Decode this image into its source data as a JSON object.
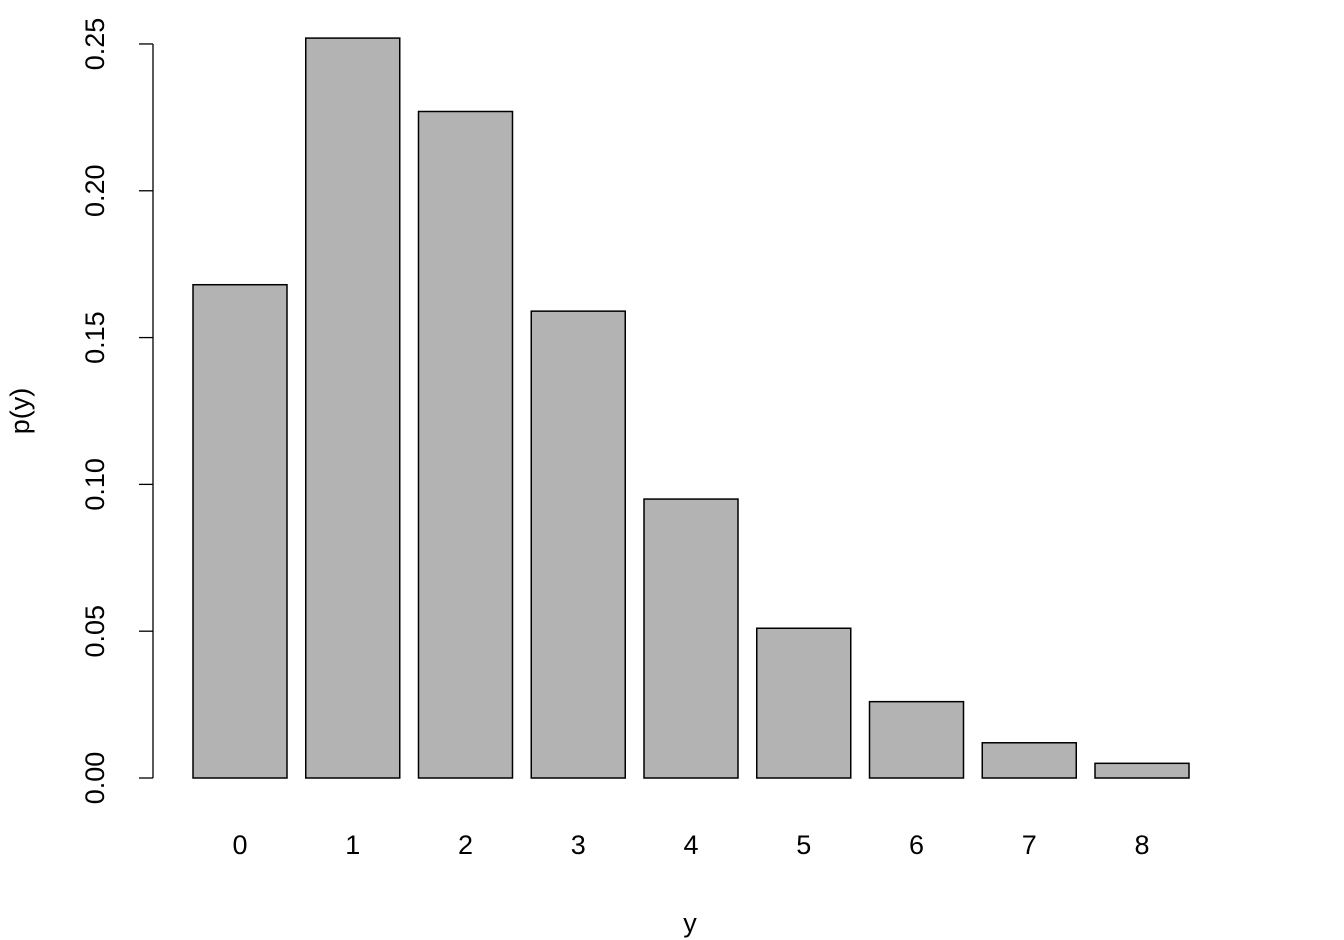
{
  "chart_data": {
    "type": "bar",
    "x_label": "y",
    "y_label": "p(y)",
    "categories": [
      "0",
      "1",
      "2",
      "3",
      "4",
      "5",
      "6",
      "7",
      "8"
    ],
    "values": [
      0.168,
      0.252,
      0.227,
      0.159,
      0.095,
      0.051,
      0.026,
      0.012,
      0.005
    ],
    "color": "#b3b3b3",
    "ylim": [
      0,
      0.26
    ],
    "yticks": [
      {
        "value": 0,
        "label": "0.00"
      },
      0.05,
      {
        "value": 0.1,
        "label": "0.10"
      },
      0.15,
      {
        "value": 0.2,
        "label": "0.20"
      },
      0.25
    ],
    "grid": false
  }
}
